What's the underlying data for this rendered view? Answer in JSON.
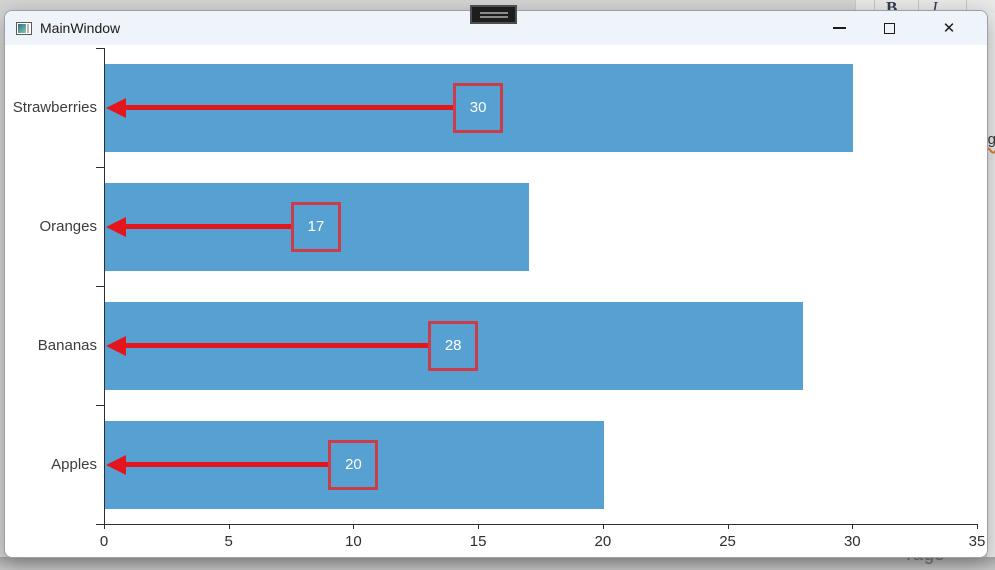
{
  "window": {
    "title": "MainWindow",
    "controls": {
      "minimize": "minimize",
      "maximize": "maximize",
      "close": "✕"
    }
  },
  "background_app": {
    "toolbar_letters": {
      "bold": "B",
      "italic": "I"
    },
    "bottom_left_label": "Tags",
    "right_edge_fragment": "ng"
  },
  "chart_data": {
    "type": "bar",
    "orientation": "horizontal",
    "title": "",
    "xlabel": "",
    "ylabel": "",
    "categories": [
      "Strawberries",
      "Oranges",
      "Bananas",
      "Apples"
    ],
    "values": [
      30,
      17,
      28,
      20
    ],
    "value_labels": [
      "30",
      "17",
      "28",
      "20"
    ],
    "xlim": [
      0,
      35
    ],
    "xticks": [
      0,
      5,
      10,
      15,
      20,
      25,
      30,
      35
    ],
    "grid": false,
    "legend": false,
    "bar_color": "#57A0D2",
    "annotation": {
      "style": "boxed value label at bar midpoint with arrow pointing left to axis",
      "arrow_color": "#E2161C",
      "box_border_color": "#CC3B48",
      "text_color": "#FFFFFF"
    }
  },
  "colors": {
    "titlebar_bg": "#EFF3FA",
    "window_bg": "#FFFFFF",
    "axis": "#2E2E2E",
    "background_strip": "#D4D4D4"
  }
}
